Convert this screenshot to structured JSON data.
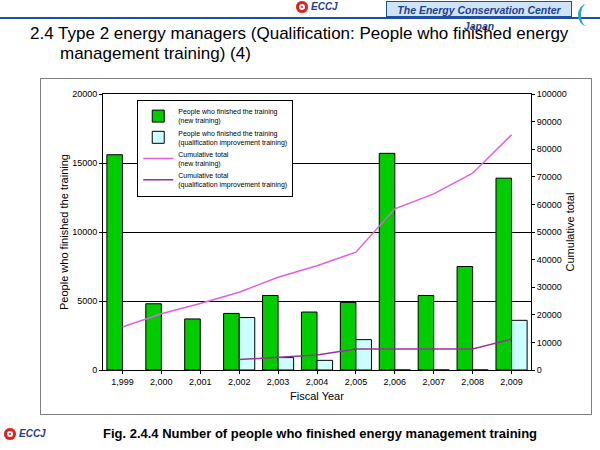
{
  "slide": {
    "logo": "ECCJ",
    "organization": "The Energy Conservation Center Japan",
    "heading": "2.4 Type 2 energy managers (Qualification: People who finished energy management training) (4)",
    "caption": "Fig. 2.4.4 Number of people who finished energy management training"
  },
  "chart_data": {
    "type": "bar",
    "x_label": "Fiscal Year",
    "y_label": "People who finished the training",
    "y2_label": "Cumulative total",
    "categories": [
      "1,999",
      "2,000",
      "2,001",
      "2,002",
      "2,003",
      "2,004",
      "2,005",
      "2,006",
      "2,007",
      "2,008",
      "2,009"
    ],
    "series": [
      {
        "name": "People who finished the training (new training)",
        "type": "bar",
        "color": "#00cc00",
        "values": [
          15600,
          4800,
          3700,
          4100,
          5400,
          4200,
          4900,
          15700,
          5400,
          7500,
          13900
        ]
      },
      {
        "name": "People who finished the training (qualification improvement training)",
        "type": "bar",
        "color": "#ccffff",
        "values": [
          null,
          null,
          null,
          3800,
          900,
          700,
          2200,
          0,
          0,
          0,
          3600
        ]
      },
      {
        "name": "Cumulative total (new training)",
        "type": "line",
        "color": "#e060e0",
        "axis": "y2",
        "values": [
          15600,
          20400,
          24100,
          28200,
          33600,
          37800,
          42700,
          58400,
          63800,
          71300,
          85200
        ]
      },
      {
        "name": "Cumulative total (qualification improvement training)",
        "type": "line",
        "color": "#993399",
        "axis": "y2",
        "values": [
          null,
          null,
          null,
          3800,
          4700,
          5400,
          7600,
          7600,
          7600,
          7600,
          11200
        ]
      }
    ],
    "ylim": [
      0,
      20000
    ],
    "yticks": [
      0,
      5000,
      10000,
      15000,
      20000
    ],
    "y2lim": [
      0,
      100000
    ],
    "y2ticks": [
      0,
      10000,
      20000,
      30000,
      40000,
      50000,
      60000,
      70000,
      80000,
      90000,
      100000
    ],
    "grid": true,
    "legend": "top left"
  }
}
